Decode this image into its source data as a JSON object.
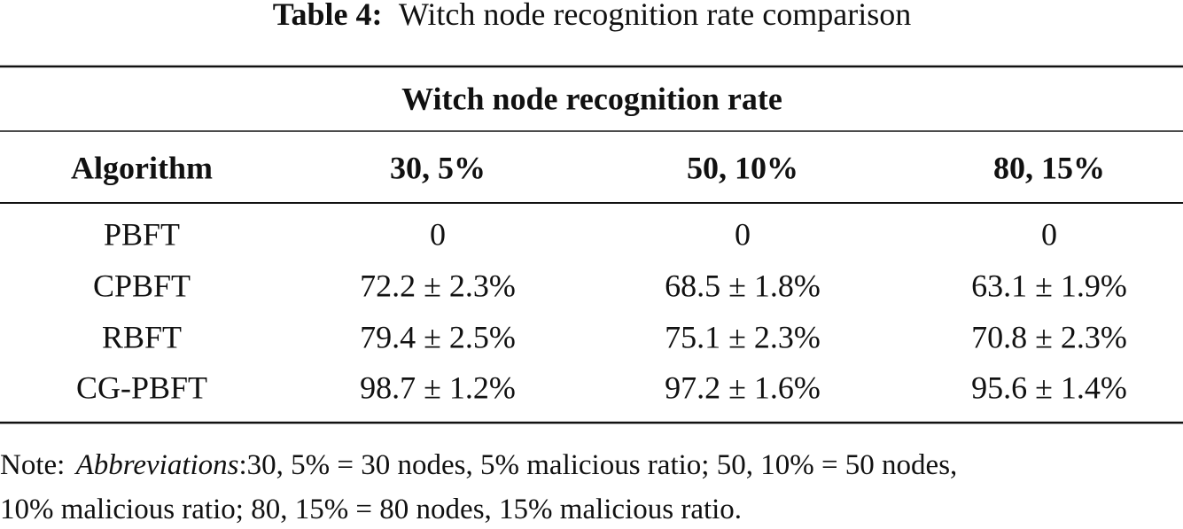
{
  "table": {
    "caption": {
      "label": "Table 4:",
      "text": "Witch node recognition rate comparison"
    },
    "group_header": "Witch node recognition rate",
    "columns": [
      "Algorithm",
      "30, 5%",
      "50, 10%",
      "80, 15%"
    ],
    "rows": [
      [
        "PBFT",
        "0",
        "0",
        "0"
      ],
      [
        "CPBFT",
        "72.2 ± 2.3%",
        "68.5 ± 1.8%",
        "63.1 ± 1.9%"
      ],
      [
        "RBFT",
        "79.4 ± 2.5%",
        "75.1 ± 2.3%",
        "70.8 ± 2.3%"
      ],
      [
        "CG-PBFT",
        "98.7 ± 1.2%",
        "97.2 ± 1.6%",
        "95.6 ± 1.4%"
      ]
    ]
  },
  "note": {
    "label": "Note:",
    "emphasis": "Abbreviations",
    "lines": [
      ":30, 5% = 30 nodes, 5% malicious ratio; 50, 10% = 50 nodes,",
      "10% malicious ratio; 80, 15% = 80 nodes, 15% malicious ratio."
    ]
  }
}
